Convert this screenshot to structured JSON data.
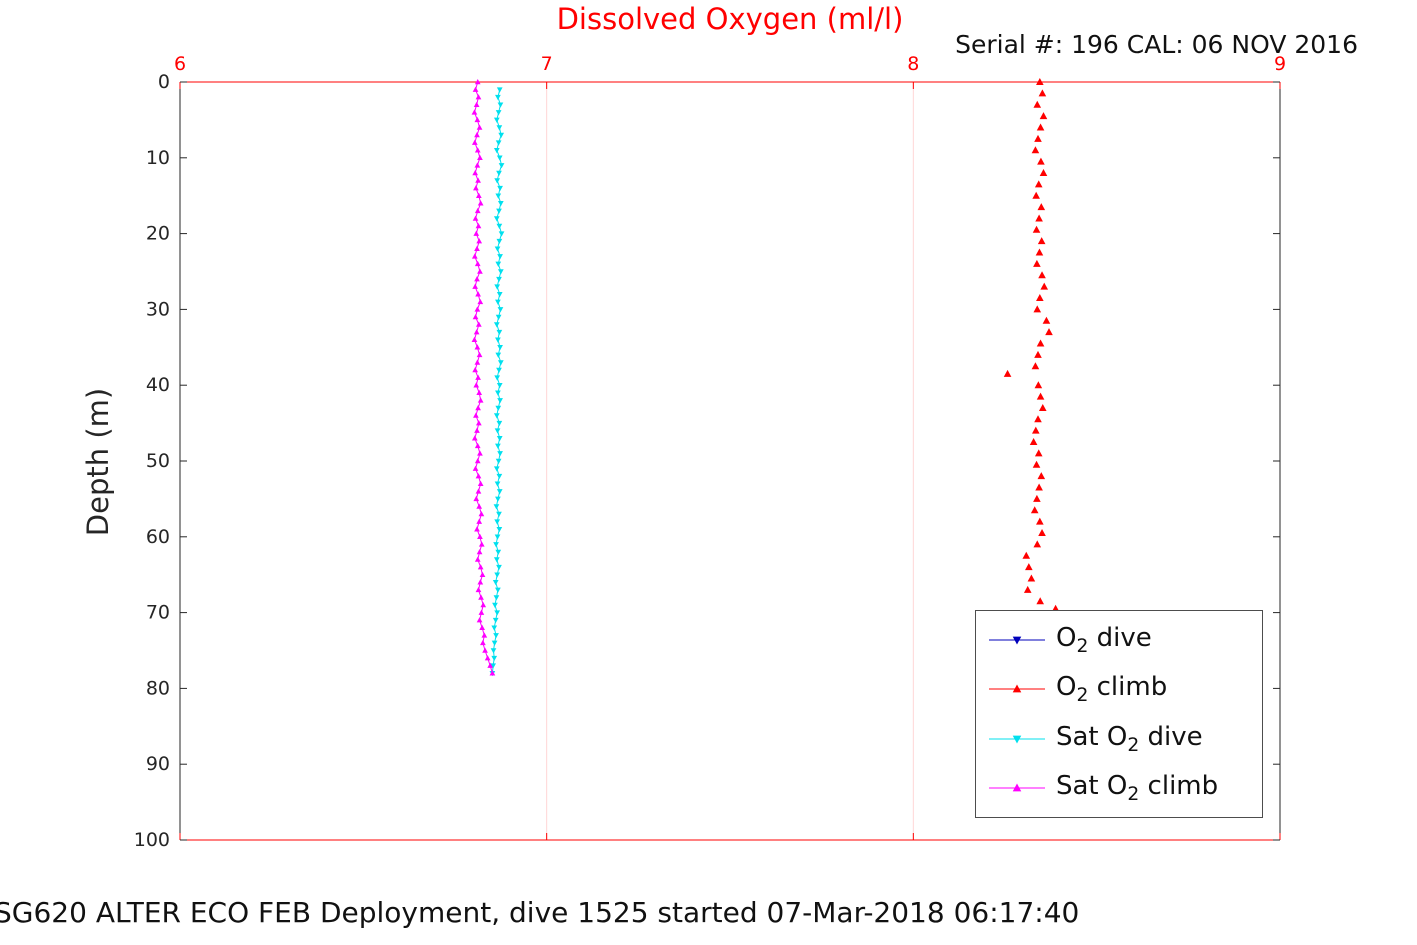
{
  "page": {
    "title": "Dissolved Oxygen (ml/l)",
    "title_color": "#ff0000",
    "serial_text": "Serial #: 196  CAL: 06 NOV 2016",
    "caption": "SG620 ALTER ECO FEB Deployment, dive 1525 started 07-Mar-2018 06:17:40",
    "text_color": "#111111"
  },
  "chart_data": {
    "type": "scatter",
    "title": "Dissolved Oxygen (ml/l)",
    "xlabel": "",
    "ylabel": "Depth (m)",
    "xlim": [
      6,
      9
    ],
    "ylim": [
      0,
      100
    ],
    "y_reversed": true,
    "xticks": [
      6,
      7,
      8,
      9
    ],
    "yticks": [
      0,
      10,
      20,
      30,
      40,
      50,
      60,
      70,
      80,
      90,
      100
    ],
    "grid": "vertical-only",
    "grid_color": "#ffd6d6",
    "x_axis_color": "#ff0000",
    "y_axis_color": "#262626",
    "legend_position": "bottom-right-inside",
    "series": [
      {
        "name": "O2 dive",
        "color": "#0000bb",
        "marker": "triangle-down",
        "marker_size": 4,
        "line": false,
        "depths": [],
        "values": []
      },
      {
        "name": "O2 climb",
        "color": "#ff0000",
        "marker": "triangle-up",
        "marker_size": 4,
        "line": false,
        "depths": [
          0,
          1.5,
          3,
          4.5,
          6,
          7.5,
          9,
          10.5,
          12,
          13.5,
          15,
          16.5,
          18,
          19.5,
          21,
          22.5,
          24,
          25.5,
          27,
          28.5,
          30,
          31.5,
          33,
          34.5,
          36,
          37.5,
          38.5,
          40,
          41.5,
          43,
          44.5,
          46,
          47.5,
          49,
          50.5,
          52,
          53.5,
          55,
          56.5,
          58,
          59.5,
          61,
          62.5,
          64,
          65.5,
          67,
          68.5,
          69.5
        ],
        "values": [
          8.345,
          8.352,
          8.338,
          8.355,
          8.347,
          8.34,
          8.333,
          8.348,
          8.355,
          8.342,
          8.335,
          8.349,
          8.343,
          8.336,
          8.35,
          8.344,
          8.337,
          8.351,
          8.357,
          8.345,
          8.338,
          8.363,
          8.37,
          8.347,
          8.34,
          8.333,
          8.257,
          8.341,
          8.347,
          8.353,
          8.34,
          8.334,
          8.328,
          8.342,
          8.336,
          8.349,
          8.343,
          8.337,
          8.331,
          8.345,
          8.351,
          8.338,
          8.308,
          8.315,
          8.322,
          8.312,
          8.346,
          8.388
        ]
      },
      {
        "name": "Sat O2 dive",
        "color": "#00e0ee",
        "marker": "triangle-down",
        "marker_size": 3,
        "line": true,
        "depths": [
          1,
          2,
          3,
          4,
          5,
          6,
          7,
          8,
          9,
          10,
          11,
          12,
          13,
          14,
          15,
          16,
          17,
          18,
          19,
          20,
          21,
          22,
          23,
          24,
          25,
          26,
          27,
          28,
          29,
          30,
          31,
          32,
          33,
          34,
          35,
          36,
          37,
          38,
          39,
          40,
          41,
          42,
          43,
          44,
          45,
          46,
          47,
          48,
          49,
          50,
          51,
          52,
          53,
          54,
          55,
          56,
          57,
          58,
          59,
          60,
          61,
          62,
          63,
          64,
          65,
          66,
          67,
          68,
          69,
          70,
          71,
          72,
          73,
          74,
          75,
          76,
          77,
          78
        ],
        "values": [
          6.872,
          6.867,
          6.874,
          6.869,
          6.864,
          6.871,
          6.876,
          6.869,
          6.864,
          6.872,
          6.877,
          6.87,
          6.865,
          6.873,
          6.868,
          6.875,
          6.87,
          6.864,
          6.871,
          6.877,
          6.871,
          6.866,
          6.873,
          6.868,
          6.875,
          6.87,
          6.865,
          6.872,
          6.867,
          6.874,
          6.869,
          6.864,
          6.871,
          6.867,
          6.873,
          6.868,
          6.875,
          6.87,
          6.865,
          6.872,
          6.867,
          6.873,
          6.868,
          6.864,
          6.871,
          6.866,
          6.872,
          6.867,
          6.873,
          6.869,
          6.864,
          6.871,
          6.866,
          6.872,
          6.867,
          6.863,
          6.87,
          6.865,
          6.871,
          6.866,
          6.862,
          6.868,
          6.864,
          6.87,
          6.865,
          6.861,
          6.867,
          6.863,
          6.859,
          6.865,
          6.861,
          6.857,
          6.862,
          6.858,
          6.855,
          6.857,
          6.854,
          6.852
        ]
      },
      {
        "name": "Sat O2 climb",
        "color": "#ff00ff",
        "marker": "triangle-up",
        "marker_size": 3,
        "line": true,
        "depths": [
          0,
          1,
          2,
          3,
          4,
          5,
          6,
          7,
          8,
          9,
          10,
          11,
          12,
          13,
          14,
          15,
          16,
          17,
          18,
          19,
          20,
          21,
          22,
          23,
          24,
          25,
          26,
          27,
          28,
          29,
          30,
          31,
          32,
          33,
          34,
          35,
          36,
          37,
          38,
          39,
          40,
          41,
          42,
          43,
          44,
          45,
          46,
          47,
          48,
          49,
          50,
          51,
          52,
          53,
          54,
          55,
          56,
          57,
          58,
          59,
          60,
          61,
          62,
          63,
          64,
          65,
          66,
          67,
          68,
          69,
          70,
          71,
          72,
          73,
          74,
          75,
          76,
          77,
          78
        ],
        "values": [
          6.812,
          6.806,
          6.814,
          6.809,
          6.803,
          6.811,
          6.817,
          6.81,
          6.804,
          6.812,
          6.818,
          6.811,
          6.805,
          6.813,
          6.807,
          6.815,
          6.82,
          6.812,
          6.806,
          6.814,
          6.808,
          6.816,
          6.81,
          6.804,
          6.812,
          6.818,
          6.81,
          6.805,
          6.813,
          6.819,
          6.811,
          6.806,
          6.815,
          6.809,
          6.803,
          6.811,
          6.817,
          6.811,
          6.805,
          6.813,
          6.808,
          6.816,
          6.82,
          6.813,
          6.807,
          6.815,
          6.81,
          6.804,
          6.812,
          6.818,
          6.812,
          6.806,
          6.814,
          6.82,
          6.814,
          6.808,
          6.816,
          6.822,
          6.816,
          6.81,
          6.818,
          6.823,
          6.817,
          6.812,
          6.82,
          6.825,
          6.819,
          6.814,
          6.821,
          6.827,
          6.822,
          6.817,
          6.824,
          6.83,
          6.826,
          6.832,
          6.839,
          6.846,
          6.852
        ]
      }
    ]
  },
  "legend": {
    "items": [
      {
        "key": "o2-dive",
        "pre": "O",
        "sub": "2",
        "post": " dive",
        "color": "#0000bb",
        "marker": "down"
      },
      {
        "key": "o2-climb",
        "pre": "O",
        "sub": "2",
        "post": " climb",
        "color": "#ff0000",
        "marker": "up"
      },
      {
        "key": "sat-o2-dive",
        "pre": "Sat O",
        "sub": "2",
        "post": " dive",
        "color": "#00e0ee",
        "marker": "down"
      },
      {
        "key": "sat-o2-climb",
        "pre": "Sat O",
        "sub": "2",
        "post": " climb",
        "color": "#ff00ff",
        "marker": "up"
      }
    ]
  }
}
